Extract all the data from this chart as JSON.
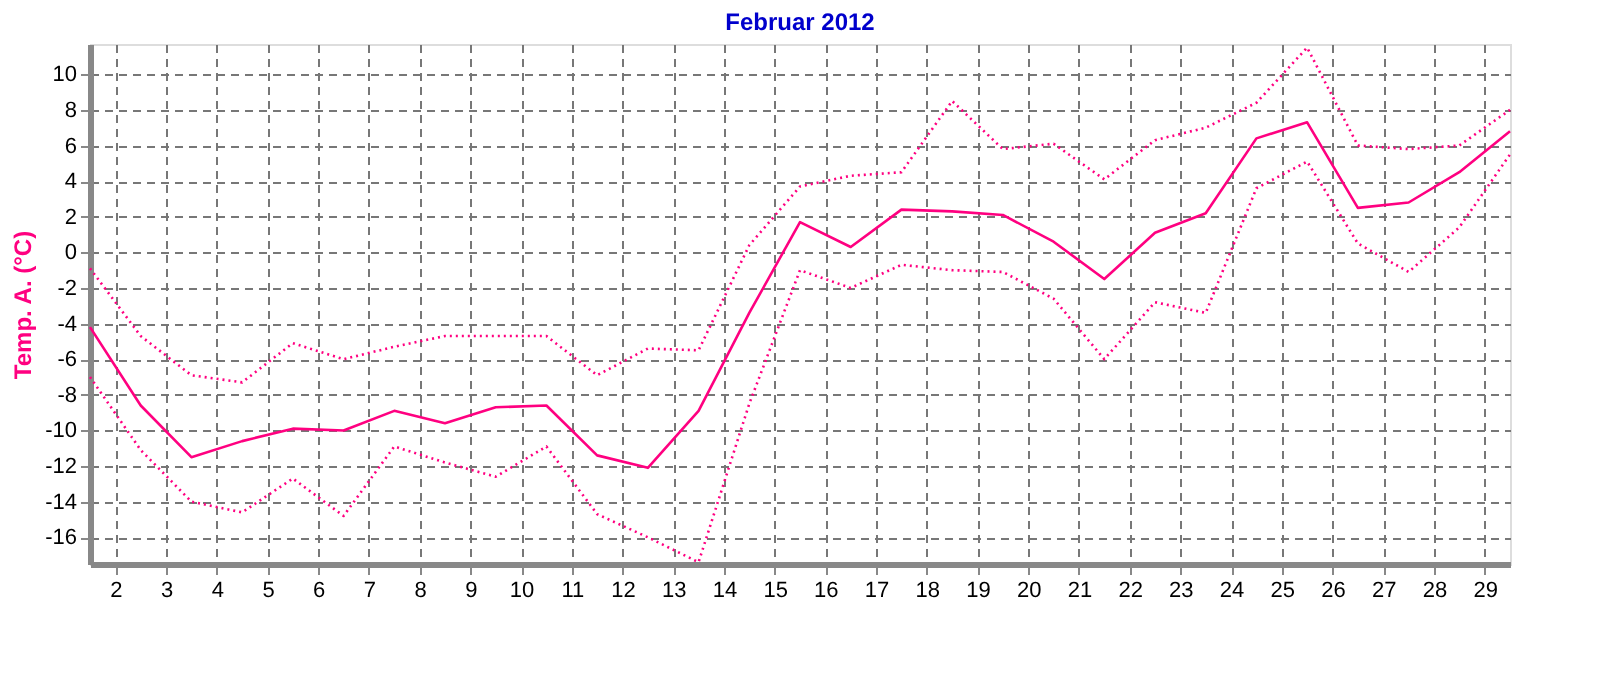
{
  "chart_data": {
    "type": "line",
    "title": "Februar 2012",
    "ylabel": "Temp. A. (°C)",
    "x": [
      1.5,
      2.5,
      3.5,
      4.5,
      5.5,
      6.5,
      7.5,
      8.5,
      9.5,
      10.5,
      11.5,
      12.5,
      13.5,
      14.5,
      15.5,
      16.5,
      17.5,
      18.5,
      19.5,
      20.5,
      21.5,
      22.5,
      23.5,
      24.5,
      25.5,
      26.5,
      27.5,
      28.5,
      29.5
    ],
    "series": [
      {
        "color": "#ff0080",
        "line_style": "dotted",
        "values": [
          -0.9,
          -4.7,
          -6.9,
          -7.3,
          -5.1,
          -6.0,
          -5.3,
          -4.7,
          -4.7,
          -4.7,
          -6.9,
          -5.4,
          -5.5,
          0.4,
          3.7,
          4.3,
          4.5,
          8.5,
          5.8,
          6.1,
          4.1,
          6.3,
          7.0,
          8.4,
          11.5,
          6.0,
          5.8,
          6.0,
          8.0
        ]
      },
      {
        "color": "#ff0080",
        "line_style": "solid",
        "values": [
          -4.2,
          -8.6,
          -11.5,
          -10.6,
          -9.9,
          -10.0,
          -8.9,
          -9.6,
          -8.7,
          -8.6,
          -11.4,
          -12.1,
          -8.9,
          -3.4,
          1.7,
          0.3,
          2.4,
          2.3,
          2.1,
          0.6,
          -1.5,
          1.1,
          2.2,
          6.4,
          7.3,
          2.5,
          2.8,
          4.5,
          6.8
        ]
      },
      {
        "color": "#ff0080",
        "line_style": "dotted",
        "values": [
          -7.0,
          -11.1,
          -14.0,
          -14.6,
          -12.7,
          -14.8,
          -10.9,
          -11.8,
          -12.6,
          -10.9,
          -14.7,
          -16.0,
          -17.4,
          -8.5,
          -1.0,
          -2.0,
          -0.7,
          -1.0,
          -1.1,
          -2.6,
          -6.0,
          -2.8,
          -3.4,
          3.6,
          5.1,
          0.5,
          -1.1,
          1.4,
          5.5
        ]
      }
    ],
    "xlim": [
      1.5,
      29.5
    ],
    "xticks": [
      2,
      3,
      4,
      5,
      6,
      7,
      8,
      9,
      10,
      11,
      12,
      13,
      14,
      15,
      16,
      17,
      18,
      19,
      20,
      21,
      22,
      23,
      24,
      25,
      26,
      27,
      28,
      29
    ],
    "ylim": [
      -17.5,
      11.7
    ],
    "yticks": [
      -16,
      -14,
      -12,
      -10,
      -8,
      -6,
      -4,
      -2,
      0,
      2,
      4,
      6,
      8,
      10
    ],
    "grid": true,
    "marker": "none"
  }
}
